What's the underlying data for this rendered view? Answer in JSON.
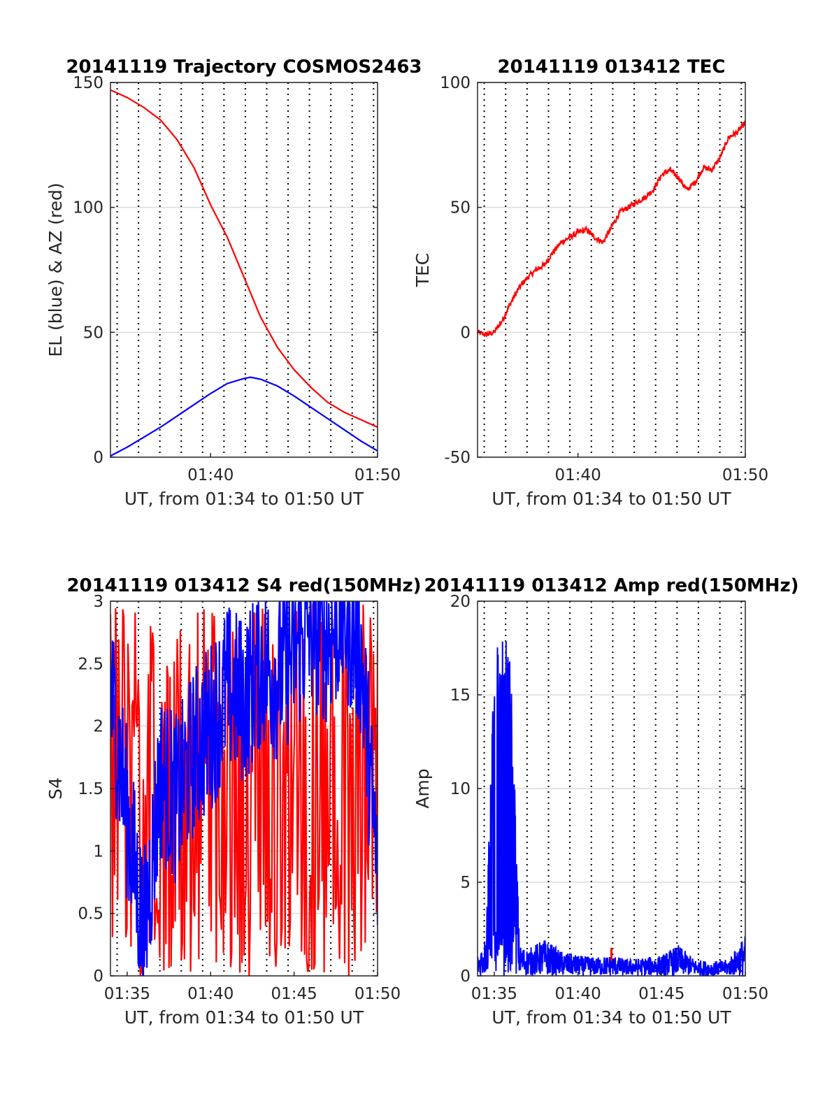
{
  "colors": {
    "azimuth": "#ff0000",
    "elevation": "#0000ff",
    "tec": "#ff0000",
    "s4_red": "#ff0000",
    "s4_blue": "#0000ff",
    "amp_red": "#ff0000",
    "amp_blue": "#0000ff",
    "grid": "#dcdcdc",
    "minor_grid": "#000000"
  },
  "chart_data": [
    {
      "id": "trajectory",
      "type": "line",
      "title": "20141119 Trajectory COSMOS2463",
      "xlabel": "UT, from 01:34 to 01:50 UT",
      "ylabel": "EL (blue) & AZ (red)",
      "xlim": [
        "01:34",
        "01:50"
      ],
      "ylim": [
        0,
        150
      ],
      "x_ticks": [
        "01:40",
        "01:50"
      ],
      "y_ticks": [
        "0",
        "50",
        "100",
        "150"
      ],
      "grid": true,
      "minor_grid": "vertical dotted",
      "series": [
        {
          "color": "red",
          "x": [
            "01:34",
            "01:35",
            "01:36",
            "01:37",
            "01:38",
            "01:39",
            "01:40",
            "01:41",
            "01:42",
            "01:43",
            "01:44",
            "01:45",
            "01:46",
            "01:47",
            "01:48",
            "01:49",
            "01:50"
          ],
          "values": [
            147,
            144,
            140,
            135,
            127,
            116,
            101,
            88,
            72,
            56,
            44,
            35,
            28,
            22,
            18,
            15,
            12
          ]
        },
        {
          "color": "blue",
          "x": [
            "01:34",
            "01:35",
            "01:36",
            "01:37",
            "01:38",
            "01:39",
            "01:40",
            "01:41",
            "01:42",
            "01:42.4",
            "01:43",
            "01:44",
            "01:45",
            "01:46",
            "01:47",
            "01:48",
            "01:49",
            "01:50"
          ],
          "values": [
            0.5,
            4,
            8,
            12,
            16.5,
            21,
            25.5,
            29.5,
            31.5,
            32,
            31.2,
            28.5,
            24.5,
            20,
            15.5,
            11,
            6.5,
            2.5
          ]
        }
      ]
    },
    {
      "id": "tec",
      "type": "line",
      "title": "20141119 013412 TEC",
      "xlabel": "UT, from 01:34 to 01:50 UT",
      "ylabel": "TEC",
      "xlim": [
        "01:34",
        "01:50"
      ],
      "ylim": [
        -50,
        100
      ],
      "x_ticks": [
        "01:40",
        "01:50"
      ],
      "y_ticks": [
        "-50",
        "0",
        "50",
        "100"
      ],
      "grid": true,
      "minor_grid": "vertical dotted",
      "series": [
        {
          "color": "red",
          "x": [
            "01:34",
            "01:34.5",
            "01:35",
            "01:35.5",
            "01:36",
            "01:36.5",
            "01:37",
            "01:37.5",
            "01:38",
            "01:38.5",
            "01:39",
            "01:39.5",
            "01:40",
            "01:40.5",
            "01:41",
            "01:41.5",
            "01:42",
            "01:42.5",
            "01:43",
            "01:43.5",
            "01:44",
            "01:44.5",
            "01:45",
            "01:45.5",
            "01:46",
            "01:46.5",
            "01:47",
            "01:47.5",
            "01:48",
            "01:48.5",
            "01:49",
            "01:49.5",
            "01:50"
          ],
          "values": [
            0,
            -1,
            0,
            5,
            12,
            18,
            22,
            25,
            27,
            32,
            36,
            38,
            40,
            41,
            38,
            36,
            42,
            48,
            50,
            52,
            54,
            57,
            63,
            65,
            62,
            57,
            60,
            66,
            65,
            70,
            78,
            80,
            84
          ]
        }
      ]
    },
    {
      "id": "s4",
      "type": "line",
      "title": "20141119 013412 S4 red(150MHz)",
      "xlabel": "UT, from 01:34 to 01:50 UT",
      "ylabel": "S4",
      "xlim": [
        "01:34",
        "01:50"
      ],
      "ylim": [
        0,
        3
      ],
      "x_ticks": [
        "01:35",
        "01:40",
        "01:45",
        "01:50"
      ],
      "y_ticks": [
        "0",
        "0.5",
        "1",
        "1.5",
        "2",
        "2.5",
        "3"
      ],
      "grid": true,
      "minor_grid": "vertical dotted",
      "series": [
        {
          "color": "red",
          "x": [
            "01:34",
            "01:35",
            "01:36",
            "01:37",
            "01:38",
            "01:39",
            "01:40",
            "01:41",
            "01:42",
            "01:43",
            "01:44",
            "01:45",
            "01:46",
            "01:47",
            "01:48",
            "01:49",
            "01:50"
          ],
          "values": [
            1.5,
            3,
            0,
            2.8,
            0.2,
            3,
            0,
            2.5,
            0.3,
            3,
            0.5,
            3,
            0,
            2.7,
            0.1,
            3,
            0.8
          ]
        },
        {
          "color": "blue",
          "x": [
            "01:34",
            "01:35",
            "01:36",
            "01:37",
            "01:38",
            "01:39",
            "01:40",
            "01:41",
            "01:42",
            "01:43",
            "01:44",
            "01:45",
            "01:46",
            "01:47",
            "01:48",
            "01:49",
            "01:50"
          ],
          "values": [
            2.3,
            1.3,
            0.3,
            1.6,
            1.4,
            1.8,
            2.0,
            2.3,
            2.2,
            2.5,
            2.4,
            2.6,
            2.8,
            2.7,
            2.9,
            2.6,
            0.8
          ]
        }
      ]
    },
    {
      "id": "amp",
      "type": "line",
      "title": "20141119 013412 Amp red(150MHz)",
      "xlabel": "UT, from 01:34 to 01:50 UT",
      "ylabel": "Amp",
      "xlim": [
        "01:34",
        "01:50"
      ],
      "ylim": [
        0,
        20
      ],
      "x_ticks": [
        "01:35",
        "01:40",
        "01:45",
        "01:50"
      ],
      "y_ticks": [
        "0",
        "5",
        "10",
        "15",
        "20"
      ],
      "grid": true,
      "minor_grid": "vertical dotted",
      "series": [
        {
          "color": "blue",
          "x": [
            "01:34",
            "01:34.5",
            "01:35",
            "01:35.5",
            "01:36",
            "01:36.5",
            "01:37",
            "01:38",
            "01:39",
            "01:40",
            "01:41",
            "01:42",
            "01:43",
            "01:44",
            "01:45",
            "01:46",
            "01:47",
            "01:48",
            "01:49",
            "01:50"
          ],
          "values": [
            1.0,
            2.0,
            17.0,
            18.5,
            17.0,
            1.5,
            1.3,
            1.8,
            1.2,
            1.0,
            0.9,
            1.0,
            0.8,
            0.9,
            1.0,
            1.5,
            0.8,
            0.7,
            0.8,
            2.0
          ]
        },
        {
          "color": "red",
          "x": [
            "01:42"
          ],
          "values": [
            1.5
          ]
        }
      ]
    }
  ]
}
